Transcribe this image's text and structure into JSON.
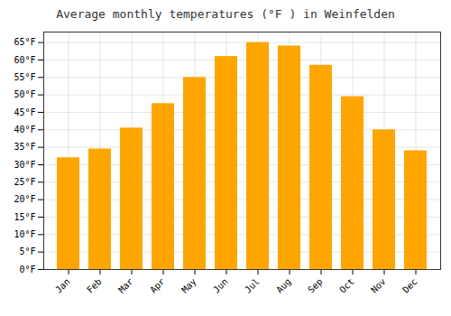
{
  "chart_data": {
    "type": "bar",
    "title": "Average monthly temperatures (°F ) in Weinfelden",
    "categories": [
      "Jan",
      "Feb",
      "Mar",
      "Apr",
      "May",
      "Jun",
      "Jul",
      "Aug",
      "Sep",
      "Oct",
      "Nov",
      "Dec"
    ],
    "values": [
      32,
      34.5,
      40.5,
      47.5,
      55,
      61,
      65,
      64,
      58.5,
      49.5,
      40,
      34
    ],
    "color": "#FFA500",
    "ylim": [
      0,
      68
    ],
    "yticks": [
      {
        "value": 0,
        "label": "0°F"
      },
      {
        "value": 5,
        "label": "5°F"
      },
      {
        "value": 10,
        "label": "10°F"
      },
      {
        "value": 15,
        "label": "15°F"
      },
      {
        "value": 20,
        "label": "20°F"
      },
      {
        "value": 25,
        "label": "25°F"
      },
      {
        "value": 30,
        "label": "30°F"
      },
      {
        "value": 35,
        "label": "35°F"
      },
      {
        "value": 40,
        "label": "40°F"
      },
      {
        "value": 45,
        "label": "45°F"
      },
      {
        "value": 50,
        "label": "50°F"
      },
      {
        "value": 55,
        "label": "55°F"
      },
      {
        "value": 60,
        "label": "60°F"
      },
      {
        "value": 65,
        "label": "65°F"
      }
    ],
    "grid": true
  }
}
